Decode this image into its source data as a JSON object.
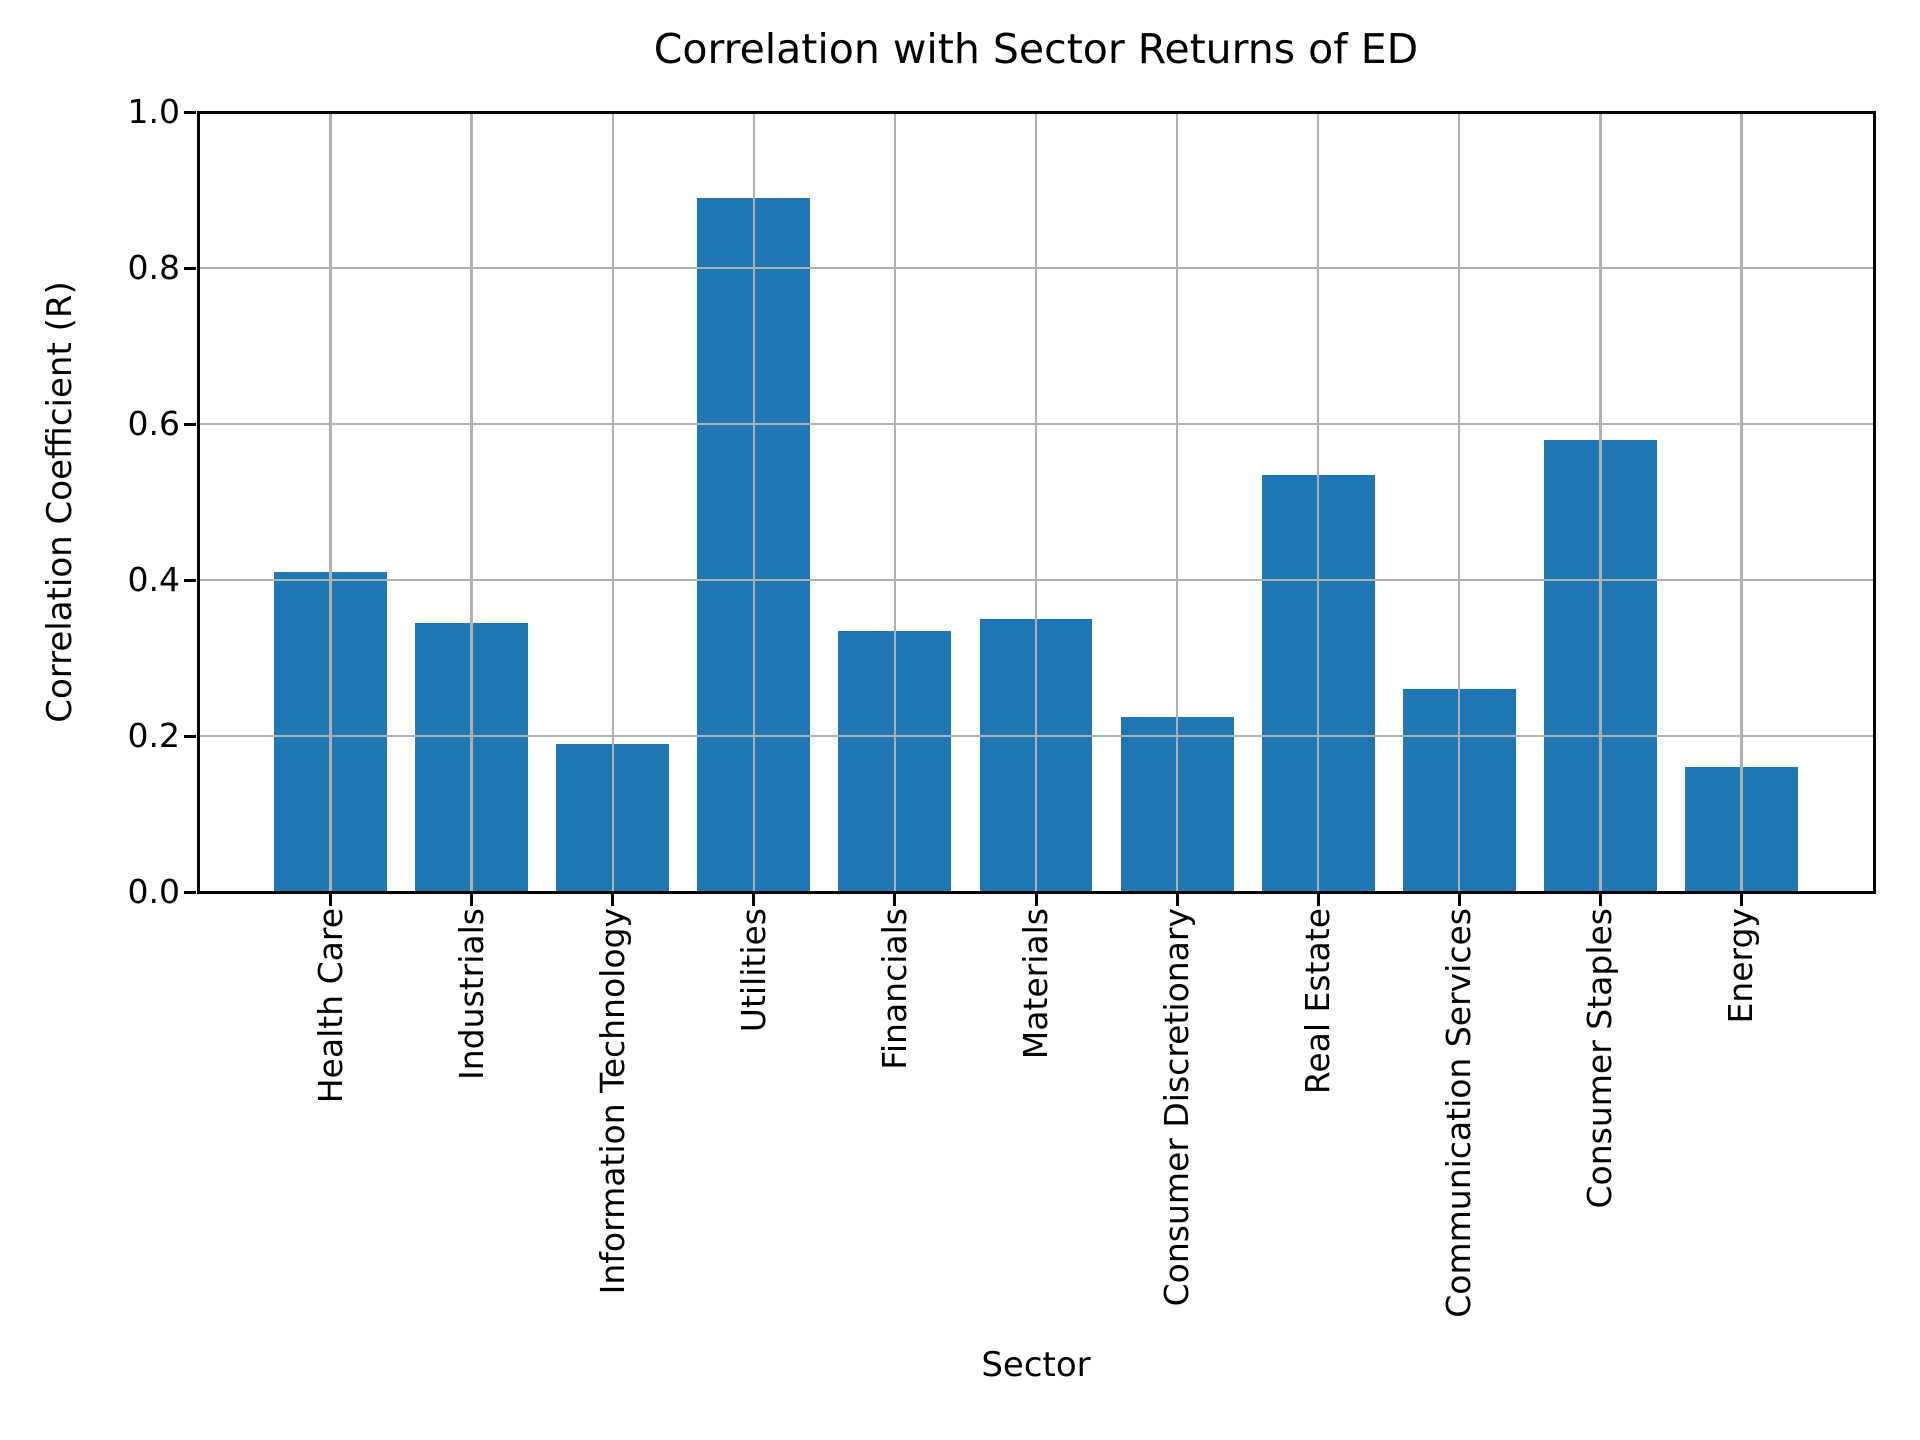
{
  "chart_data": {
    "type": "bar",
    "title": "Correlation with Sector Returns of ED",
    "xlabel": "Sector",
    "ylabel": "Correlation Coefficient (R)",
    "categories": [
      "Health Care",
      "Industrials",
      "Information Technology",
      "Utilities",
      "Financials",
      "Materials",
      "Consumer Discretionary",
      "Real Estate",
      "Communication Services",
      "Consumer Staples",
      "Energy"
    ],
    "values": [
      0.41,
      0.345,
      0.19,
      0.89,
      0.335,
      0.35,
      0.225,
      0.535,
      0.26,
      0.58,
      0.16
    ],
    "ylim": [
      0.0,
      1.0
    ],
    "ytick_labels": [
      "0.0",
      "0.2",
      "0.4",
      "0.6",
      "0.8",
      "1.0"
    ],
    "bar_width_fraction": 0.8,
    "grid": "on",
    "legend": "none",
    "bar_color": "#1f77b4",
    "grid_color": "#b0b0b0",
    "axis_color": "#000000",
    "background_color": "#ffffff"
  }
}
